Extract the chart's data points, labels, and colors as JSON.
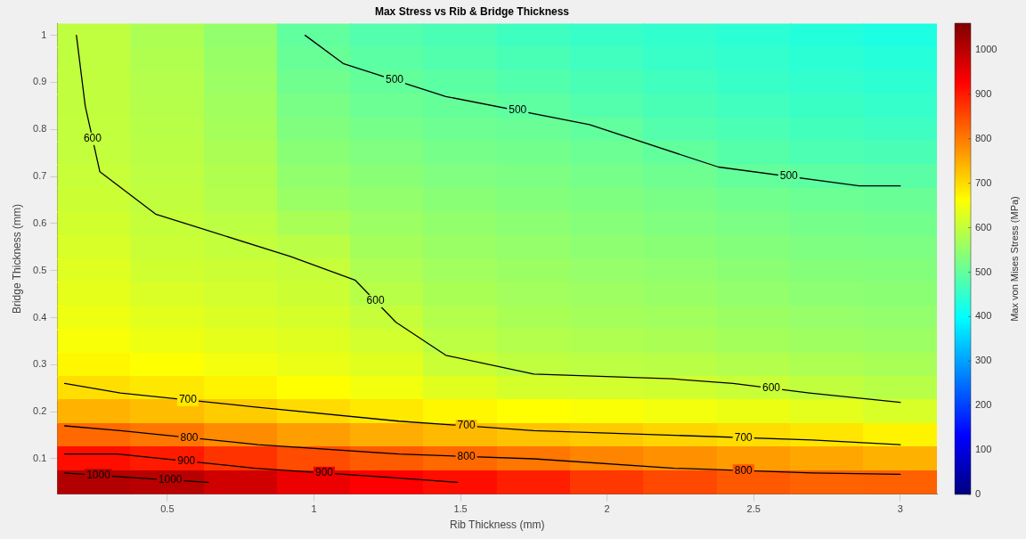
{
  "chart_data": [
    {
      "type": "heatmap",
      "title": "Max Stress vs Rib & Bridge Thickness",
      "xlabel": "Rib Thickness (mm)",
      "ylabel": "Bridge Thickness (mm)",
      "clabel": "Max von Mises Stress (MPa)",
      "categories": [
        null,
        "0.5",
        null,
        "1",
        null,
        "1.5",
        null,
        "2",
        null,
        "2.5",
        null,
        "3"
      ],
      "y_categories": [
        "1",
        null,
        "0.9",
        null,
        "0.8",
        null,
        "0.7",
        null,
        "0.6",
        null,
        "0.5",
        null,
        "0.4",
        null,
        "0.3",
        null,
        "0.2",
        null,
        "0.1",
        null
      ],
      "clim": [
        0,
        1060
      ],
      "cticks": [
        0,
        100,
        200,
        300,
        400,
        500,
        600,
        700,
        800,
        900,
        1000
      ],
      "grid": false,
      "legend": false,
      "tick_labels": false,
      "cells": [
        [
          597,
          576,
          550,
          498,
          484,
          474,
          463,
          456,
          448,
          442,
          435,
          428
        ],
        [
          597,
          580,
          555,
          506,
          492,
          483,
          473,
          464,
          456,
          449,
          442,
          436
        ],
        [
          598,
          583,
          560,
          514,
          501,
          492,
          483,
          473,
          464,
          456,
          449,
          444
        ],
        [
          598,
          586,
          565,
          523,
          510,
          502,
          495,
          484,
          473,
          465,
          458,
          453
        ],
        [
          599,
          589,
          570,
          531,
          520,
          511,
          507,
          498,
          484,
          475,
          467,
          462
        ],
        [
          600,
          592,
          575,
          540,
          530,
          520,
          517,
          510,
          499,
          486,
          478,
          474
        ],
        [
          604,
          595,
          580,
          549,
          540,
          530,
          526,
          520,
          513,
          501,
          494,
          491
        ],
        [
          609,
          598,
          585,
          558,
          550,
          540,
          535,
          529,
          523,
          515,
          509,
          507
        ],
        [
          615,
          602,
          593,
          573,
          560,
          549,
          543,
          537,
          532,
          525,
          519,
          517
        ],
        [
          622,
          607,
          601,
          591,
          569,
          558,
          551,
          545,
          540,
          534,
          528,
          526
        ],
        [
          629,
          614,
          609,
          603,
          578,
          566,
          559,
          553,
          548,
          542,
          536,
          534
        ],
        [
          636,
          623,
          616,
          610,
          589,
          574,
          566,
          561,
          556,
          550,
          544,
          542
        ],
        [
          645,
          633,
          625,
          619,
          603,
          583,
          574,
          569,
          565,
          559,
          553,
          550
        ],
        [
          656,
          645,
          636,
          629,
          616,
          593,
          583,
          579,
          575,
          569,
          563,
          560
        ],
        [
          671,
          661,
          650,
          641,
          630,
          607,
          596,
          593,
          590,
          584,
          577,
          573
        ],
        [
          696,
          686,
          674,
          662,
          649,
          630,
          619,
          616,
          614,
          606,
          598,
          589
        ],
        [
          741,
          731,
          715,
          700,
          685,
          671,
          663,
          657,
          650,
          643,
          634,
          622
        ],
        [
          818,
          805,
          783,
          763,
          748,
          734,
          725,
          717,
          706,
          698,
          688,
          674
        ],
        [
          913,
          900,
          875,
          849,
          833,
          818,
          805,
          790,
          778,
          765,
          754,
          744
        ],
        [
          1008,
          1000,
          975,
          947,
          928,
          913,
          895,
          870,
          853,
          835,
          826,
          827
        ]
      ]
    },
    {
      "type": "line",
      "legend": false,
      "grid": false,
      "xlim": [
        0.125,
        3.125
      ],
      "ylim": [
        0.025,
        1.025
      ],
      "xticks": [
        0.5,
        1,
        1.5,
        2,
        2.5,
        3
      ],
      "yticks": [
        0.1,
        0.2,
        0.3,
        0.4,
        0.5,
        0.6,
        0.7,
        0.8,
        0.9,
        1
      ],
      "series": [
        {
          "name": "500",
          "color": "#000000",
          "x": [
            0.97,
            1.1,
            1.45,
            1.94,
            2.38,
            2.86,
            3
          ],
          "values": [
            1,
            0.94,
            0.87,
            0.81,
            0.72,
            0.68,
            0.68
          ]
        },
        {
          "name": "600",
          "color": "#000000",
          "x": [
            0.19,
            0.22,
            0.27,
            0.46,
            0.92,
            1.14,
            1.28,
            1.45,
            1.75,
            2.22,
            2.43,
            2.69,
            3
          ],
          "values": [
            1,
            0.85,
            0.71,
            0.62,
            0.53,
            0.48,
            0.39,
            0.32,
            0.28,
            0.27,
            0.26,
            0.24,
            0.22
          ]
        },
        {
          "name": "700",
          "color": "#000000",
          "x": [
            0.15,
            0.34,
            0.8,
            1.29,
            1.75,
            2.23,
            2.7,
            3
          ],
          "values": [
            0.26,
            0.24,
            0.21,
            0.18,
            0.16,
            0.15,
            0.14,
            0.13
          ]
        },
        {
          "name": "800",
          "color": "#000000",
          "x": [
            0.15,
            0.34,
            0.81,
            1.29,
            1.75,
            2.23,
            2.7,
            3
          ],
          "values": [
            0.17,
            0.16,
            0.13,
            0.11,
            0.1,
            0.08,
            0.07,
            0.067
          ]
        },
        {
          "name": "900",
          "color": "#000000",
          "x": [
            0.15,
            0.33,
            0.8,
            1.27,
            1.49
          ],
          "values": [
            0.11,
            0.11,
            0.08,
            0.06,
            0.05
          ]
        },
        {
          "name": "1000",
          "color": "#000000",
          "x": [
            0.15,
            0.38,
            0.64
          ],
          "values": [
            0.07,
            0.06,
            0.05
          ]
        }
      ]
    }
  ]
}
